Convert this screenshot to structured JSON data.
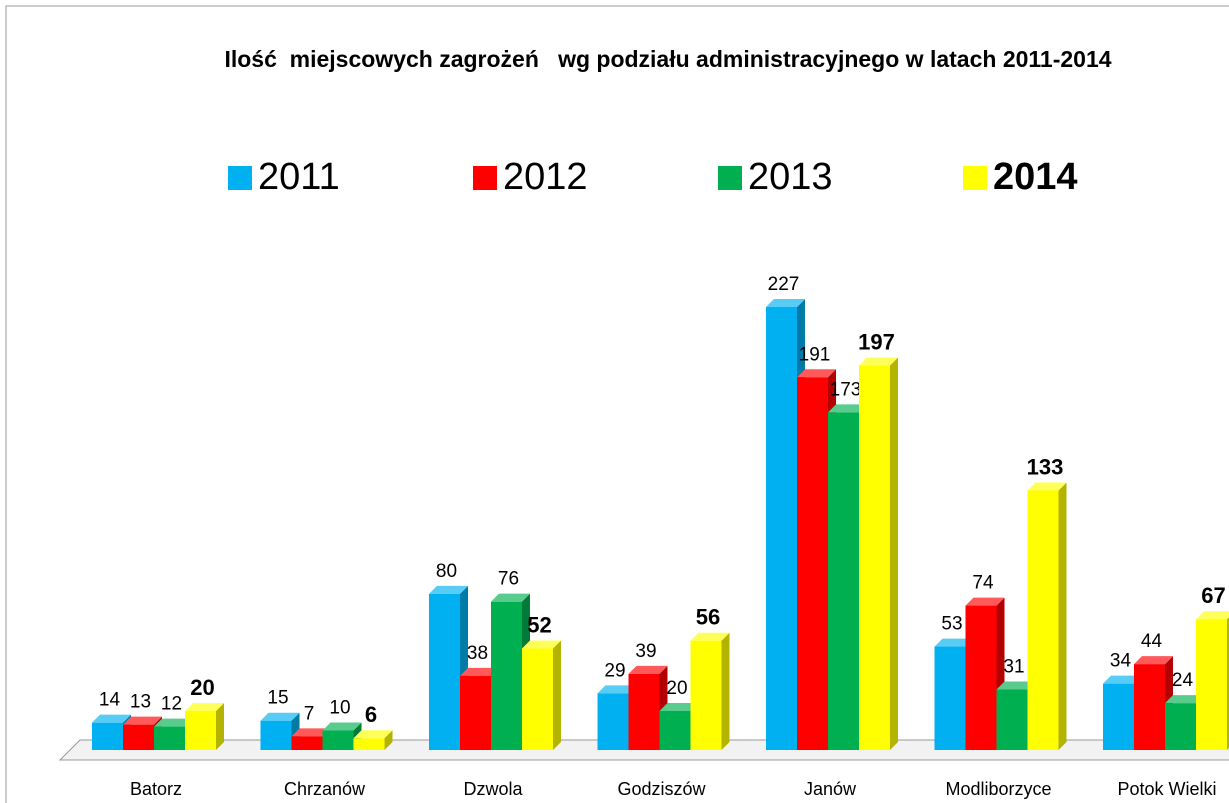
{
  "chart_data": {
    "type": "bar3d",
    "title": "Ilość  miejscowych zagrożeń   wg podziału administracyjnego w latach 2011-2014",
    "categories": [
      "Batorz",
      "Chrzanów",
      "Dzwola",
      "Godziszów",
      "Janów",
      "Modliborzyce",
      "Potok Wielki"
    ],
    "series": [
      {
        "name": "2011",
        "color": "#00b0f0",
        "values": [
          14,
          15,
          80,
          29,
          227,
          53,
          34
        ]
      },
      {
        "name": "2012",
        "color": "#ff0000",
        "values": [
          13,
          7,
          38,
          39,
          191,
          74,
          44
        ]
      },
      {
        "name": "2013",
        "color": "#00b050",
        "values": [
          12,
          10,
          76,
          20,
          173,
          31,
          24
        ]
      },
      {
        "name": "2014",
        "color": "#ffff00",
        "values": [
          20,
          6,
          52,
          56,
          197,
          133,
          67
        ]
      }
    ]
  }
}
